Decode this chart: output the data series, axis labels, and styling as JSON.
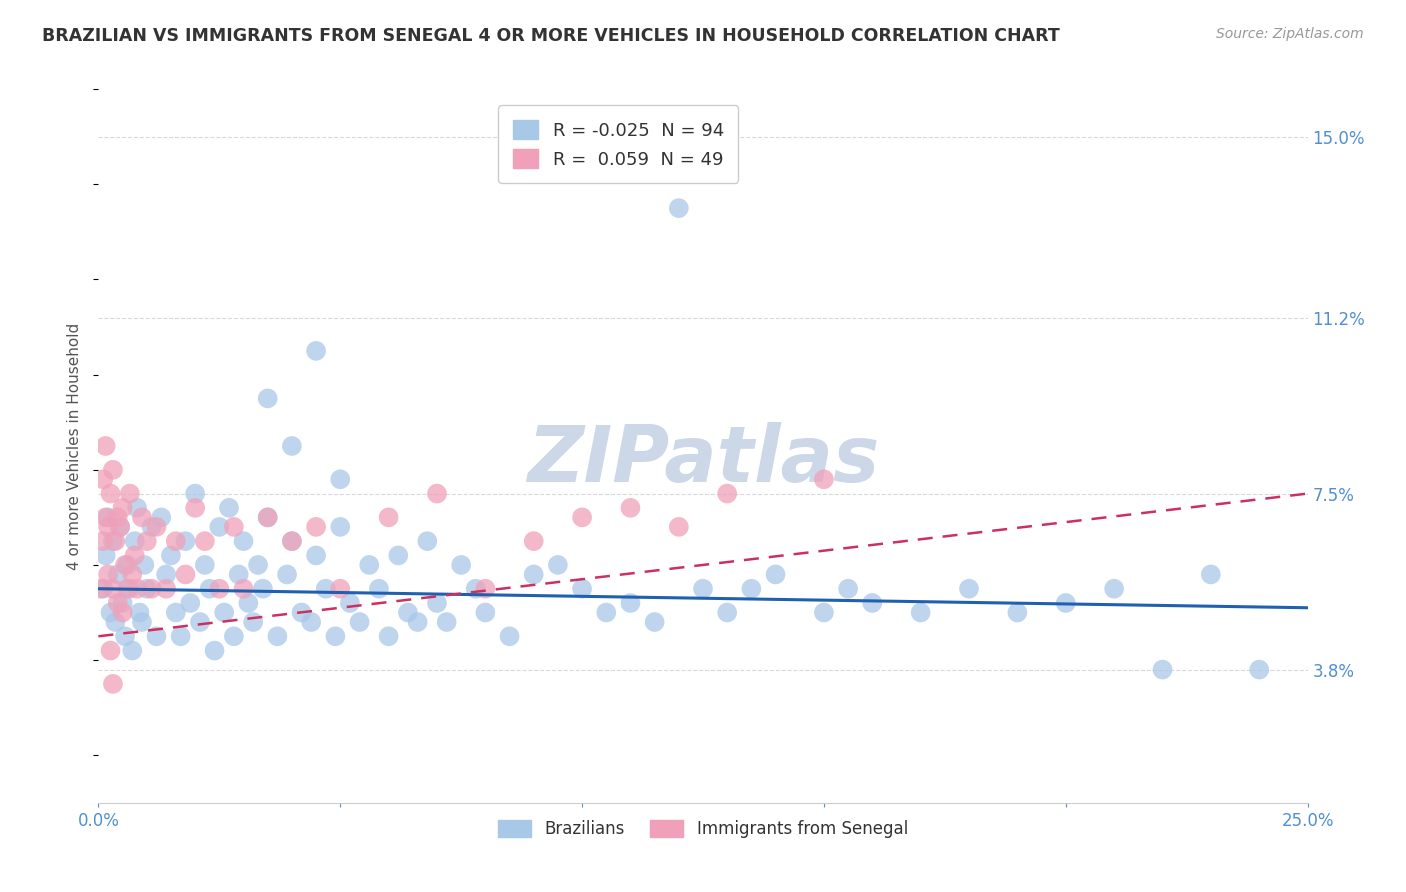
{
  "title": "BRAZILIAN VS IMMIGRANTS FROM SENEGAL 4 OR MORE VEHICLES IN HOUSEHOLD CORRELATION CHART",
  "source": "Source: ZipAtlas.com",
  "ylabel": "4 or more Vehicles in Household",
  "watermark": "ZIPatlas",
  "x_min": 0.0,
  "x_max": 25.0,
  "y_min": 1.0,
  "y_max": 16.0,
  "y_tick_labels_right": [
    "3.8%",
    "7.5%",
    "11.2%",
    "15.0%"
  ],
  "y_tick_vals_right": [
    3.8,
    7.5,
    11.2,
    15.0
  ],
  "legend_r_blue": "R = -0.025  N = 94",
  "legend_r_pink": "R =  0.059  N = 49",
  "brazilian_color": "#a8c8e8",
  "senegal_color": "#f0a0b8",
  "trendline_blue": "#2060b0",
  "trendline_pink": "#cc3060",
  "background_color": "#ffffff",
  "grid_color": "#d8d8d8",
  "title_color": "#333333",
  "axis_label_color": "#555555",
  "tick_label_color": "#5090d0",
  "watermark_color": "#ccd8e8",
  "brazilian_x": [
    0.1,
    0.15,
    0.2,
    0.25,
    0.3,
    0.35,
    0.4,
    0.45,
    0.5,
    0.55,
    0.6,
    0.65,
    0.7,
    0.75,
    0.8,
    0.85,
    0.9,
    0.95,
    1.0,
    1.1,
    1.2,
    1.3,
    1.4,
    1.5,
    1.6,
    1.7,
    1.8,
    1.9,
    2.0,
    2.1,
    2.2,
    2.3,
    2.4,
    2.5,
    2.6,
    2.7,
    2.8,
    2.9,
    3.0,
    3.1,
    3.2,
    3.3,
    3.4,
    3.5,
    3.7,
    3.9,
    4.0,
    4.2,
    4.4,
    4.5,
    4.7,
    4.9,
    5.0,
    5.2,
    5.4,
    5.6,
    5.8,
    6.0,
    6.2,
    6.4,
    6.6,
    6.8,
    7.0,
    7.2,
    7.5,
    7.8,
    8.0,
    8.5,
    9.0,
    9.5,
    10.0,
    10.5,
    11.0,
    11.5,
    12.0,
    12.5,
    13.0,
    13.5,
    14.0,
    15.0,
    15.5,
    16.0,
    17.0,
    18.0,
    19.0,
    20.0,
    21.0,
    22.0,
    23.0,
    24.0,
    3.5,
    4.0,
    4.5,
    5.0
  ],
  "brazilian_y": [
    5.5,
    6.2,
    7.0,
    5.0,
    6.5,
    4.8,
    5.8,
    6.8,
    5.2,
    4.5,
    6.0,
    5.5,
    4.2,
    6.5,
    7.2,
    5.0,
    4.8,
    6.0,
    5.5,
    6.8,
    4.5,
    7.0,
    5.8,
    6.2,
    5.0,
    4.5,
    6.5,
    5.2,
    7.5,
    4.8,
    6.0,
    5.5,
    4.2,
    6.8,
    5.0,
    7.2,
    4.5,
    5.8,
    6.5,
    5.2,
    4.8,
    6.0,
    5.5,
    7.0,
    4.5,
    5.8,
    6.5,
    5.0,
    4.8,
    6.2,
    5.5,
    4.5,
    6.8,
    5.2,
    4.8,
    6.0,
    5.5,
    4.5,
    6.2,
    5.0,
    4.8,
    6.5,
    5.2,
    4.8,
    6.0,
    5.5,
    5.0,
    4.5,
    5.8,
    6.0,
    5.5,
    5.0,
    5.2,
    4.8,
    13.5,
    5.5,
    5.0,
    5.5,
    5.8,
    5.0,
    5.5,
    5.2,
    5.0,
    5.5,
    5.0,
    5.2,
    5.5,
    3.8,
    5.8,
    3.8,
    9.5,
    8.5,
    10.5,
    7.8
  ],
  "senegal_x": [
    0.05,
    0.1,
    0.1,
    0.15,
    0.15,
    0.2,
    0.2,
    0.25,
    0.3,
    0.3,
    0.35,
    0.4,
    0.4,
    0.45,
    0.5,
    0.5,
    0.55,
    0.6,
    0.65,
    0.7,
    0.75,
    0.8,
    0.9,
    1.0,
    1.1,
    1.2,
    1.4,
    1.6,
    1.8,
    2.0,
    2.2,
    2.5,
    2.8,
    3.0,
    3.5,
    4.0,
    4.5,
    5.0,
    6.0,
    7.0,
    8.0,
    9.0,
    10.0,
    11.0,
    12.0,
    13.0,
    15.0,
    0.3,
    0.25
  ],
  "senegal_y": [
    5.5,
    7.8,
    6.5,
    8.5,
    7.0,
    6.8,
    5.8,
    7.5,
    5.5,
    8.0,
    6.5,
    5.2,
    7.0,
    6.8,
    5.0,
    7.2,
    6.0,
    5.5,
    7.5,
    5.8,
    6.2,
    5.5,
    7.0,
    6.5,
    5.5,
    6.8,
    5.5,
    6.5,
    5.8,
    7.2,
    6.5,
    5.5,
    6.8,
    5.5,
    7.0,
    6.5,
    6.8,
    5.5,
    7.0,
    7.5,
    5.5,
    6.5,
    7.0,
    7.2,
    6.8,
    7.5,
    7.8,
    3.5,
    4.2
  ]
}
